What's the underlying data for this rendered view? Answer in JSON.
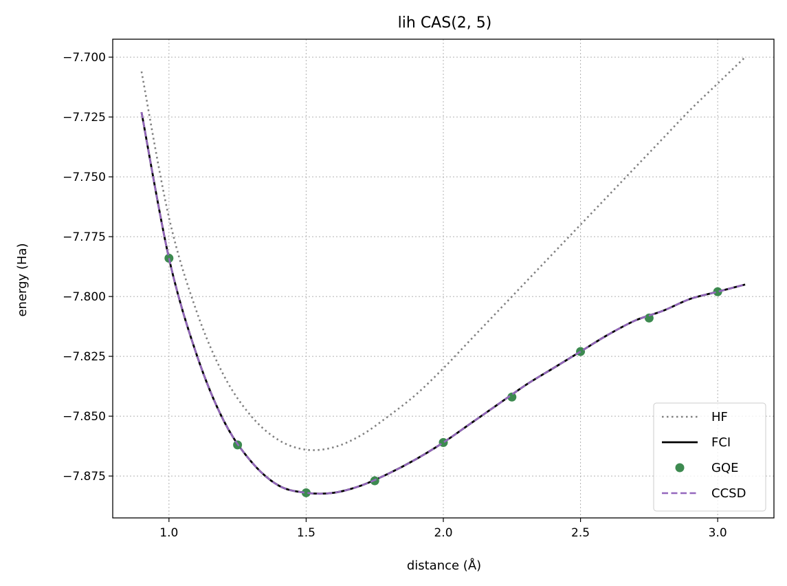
{
  "chart_data": {
    "type": "line",
    "title": "lih CAS(2, 5)",
    "xlabel": "distance (Å)",
    "ylabel": "energy (Ha)",
    "xlim": [
      0.795,
      3.205
    ],
    "ylim": [
      -7.8925,
      -7.6925
    ],
    "xticks": [
      1.0,
      1.5,
      2.0,
      2.5,
      3.0
    ],
    "xtick_labels": [
      "1.0",
      "1.5",
      "2.0",
      "2.5",
      "3.0"
    ],
    "yticks": [
      -7.7,
      -7.725,
      -7.75,
      -7.775,
      -7.8,
      -7.825,
      -7.85,
      -7.875
    ],
    "ytick_labels": [
      "−7.700",
      "−7.725",
      "−7.750",
      "−7.775",
      "−7.800",
      "−7.825",
      "−7.850",
      "−7.875"
    ],
    "grid": true,
    "legend_position": "lower-right",
    "series": [
      {
        "name": "HF",
        "style": "dotted",
        "color": "#808080",
        "x": [
          0.9,
          1.0,
          1.1,
          1.2,
          1.3,
          1.4,
          1.5,
          1.6,
          1.7,
          1.8,
          1.9,
          2.0,
          2.1,
          2.2,
          2.3,
          2.4,
          2.5,
          2.6,
          2.7,
          2.8,
          2.9,
          3.0,
          3.1
        ],
        "y": [
          -7.706,
          -7.767,
          -7.806,
          -7.833,
          -7.85,
          -7.86,
          -7.864,
          -7.863,
          -7.858,
          -7.85,
          -7.841,
          -7.83,
          -7.818,
          -7.806,
          -7.794,
          -7.782,
          -7.77,
          -7.758,
          -7.746,
          -7.734,
          -7.722,
          -7.711,
          -7.7
        ]
      },
      {
        "name": "FCI",
        "style": "solid",
        "color": "#000000",
        "x": [
          0.9,
          1.0,
          1.1,
          1.2,
          1.3,
          1.4,
          1.5,
          1.6,
          1.7,
          1.8,
          1.9,
          2.0,
          2.1,
          2.2,
          2.3,
          2.4,
          2.5,
          2.6,
          2.7,
          2.8,
          2.9,
          3.0,
          3.1
        ],
        "y": [
          -7.723,
          -7.784,
          -7.824,
          -7.852,
          -7.869,
          -7.879,
          -7.882,
          -7.882,
          -7.879,
          -7.874,
          -7.868,
          -7.861,
          -7.853,
          -7.845,
          -7.837,
          -7.83,
          -7.823,
          -7.816,
          -7.81,
          -7.806,
          -7.801,
          -7.798,
          -7.795
        ]
      },
      {
        "name": "GQE",
        "style": "markers",
        "color": "#3d8a50",
        "x": [
          1.0,
          1.25,
          1.5,
          1.75,
          2.0,
          2.25,
          2.5,
          2.75,
          3.0
        ],
        "y": [
          -7.784,
          -7.862,
          -7.882,
          -7.877,
          -7.861,
          -7.842,
          -7.823,
          -7.809,
          -7.798
        ]
      },
      {
        "name": "CCSD",
        "style": "dashed",
        "color": "#9467bd",
        "x": [
          0.9,
          1.0,
          1.1,
          1.2,
          1.3,
          1.4,
          1.5,
          1.6,
          1.7,
          1.8,
          1.9,
          2.0,
          2.1,
          2.2,
          2.3,
          2.4,
          2.5,
          2.6,
          2.7,
          2.8,
          2.9,
          3.0,
          3.1
        ],
        "y": [
          -7.723,
          -7.784,
          -7.824,
          -7.852,
          -7.869,
          -7.879,
          -7.882,
          -7.882,
          -7.879,
          -7.874,
          -7.868,
          -7.861,
          -7.853,
          -7.845,
          -7.837,
          -7.83,
          -7.823,
          -7.816,
          -7.81,
          -7.806,
          -7.801,
          -7.798,
          -7.795
        ]
      }
    ]
  }
}
